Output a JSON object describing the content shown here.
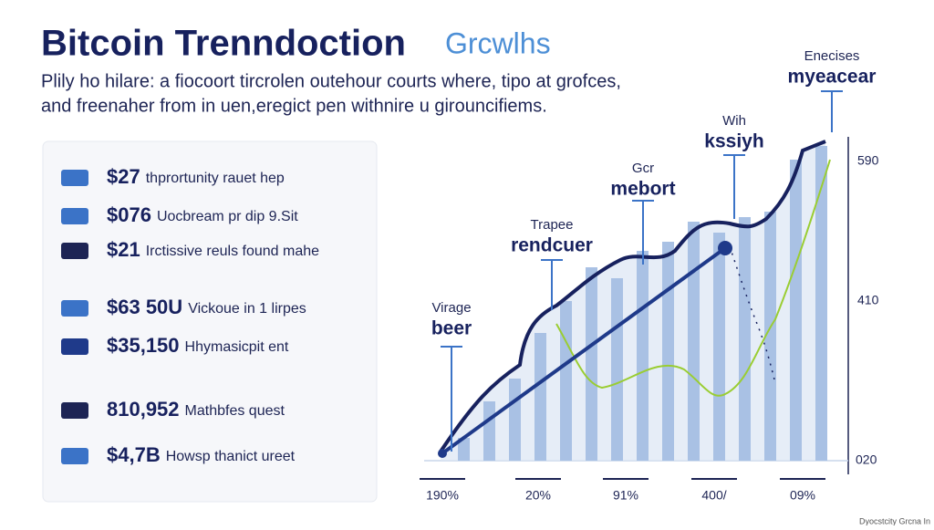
{
  "header": {
    "title": "Bitcoin Trenndoction",
    "title_accent": "Grcwlhs",
    "subtitle_lines": [
      "Plily ho hilare: a fiocoort tircrolen outehour courts where, tipo at grofces,",
      "and freenaher from in uen,eregict pen withnire u girouncifiems."
    ]
  },
  "items": [
    {
      "value": "$27",
      "label": "thprortunity rauet hep"
    },
    {
      "value": "$076",
      "label": "Uocbream pr dip 9.Sit"
    },
    {
      "value": "$21",
      "label": "Irctissive reuls found mahe"
    },
    {
      "value": "$63 50U",
      "label": "Vickoue in 1 lirpes"
    },
    {
      "value": "$35,150",
      "label": "Hhymasicpit ent"
    },
    {
      "value": "810,952",
      "label": "Mathbfes quest"
    },
    {
      "value": "$4,7B",
      "label": "Howsp thanict ureet"
    }
  ],
  "annotations": [
    {
      "small": "Virage",
      "big": "beer"
    },
    {
      "small": "Trapee",
      "big": "rendcuer"
    },
    {
      "small": "Gcr",
      "big": "mebort"
    },
    {
      "small": "Wih",
      "big": "kssiyh"
    },
    {
      "small": "Enecises",
      "big": "myeacear"
    }
  ],
  "axis_labels": [
    "590",
    "410",
    "020"
  ],
  "x_labels": [
    "190%",
    "20%",
    "91%",
    "400/",
    "09%"
  ],
  "footer": "Dyocstcity Grcna In"
}
